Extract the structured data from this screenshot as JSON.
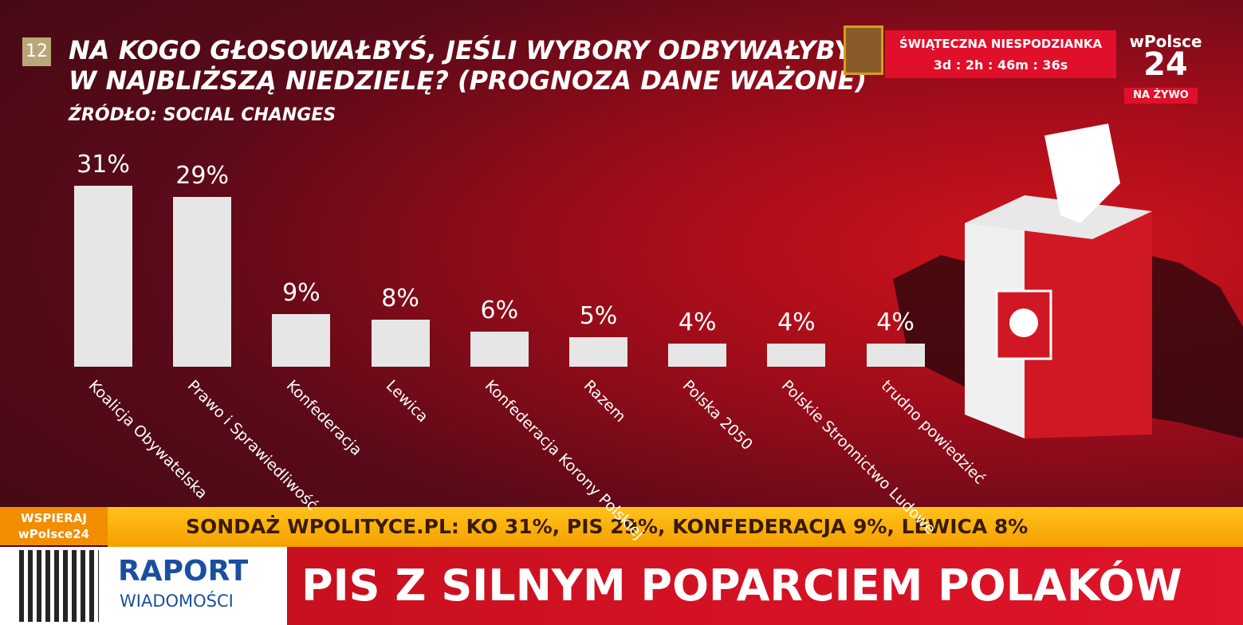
{
  "chart_data": {
    "type": "bar",
    "title": "NA KOGO GŁOSOWAŁBYŚ, JEŚLI WYBORY ODBYWAŁYBY\nW NAJBLIŻSZĄ NIEDZIELĘ? (PROGNOZA DANE WAŻONE)",
    "subtitle": "ŹRÓDŁO: SOCIAL CHANGES",
    "categories": [
      "Koalicja\nObywatelska",
      "Prawo\ni Sprawiedliwość",
      "Konfederacja",
      "Lewica",
      "Konfederacja\nKorony Polskiej",
      "Razem",
      "Polska 2050",
      "Polskie Stronnictwo\nLudowe",
      "trudno\npowiedzieć"
    ],
    "values": [
      31,
      29,
      9,
      8,
      6,
      5,
      4,
      4,
      4
    ],
    "value_labels": [
      "31%",
      "29%",
      "9%",
      "8%",
      "6%",
      "5%",
      "4%",
      "4%",
      "4%"
    ],
    "color": "#e6e6e6"
  },
  "broadcast": {
    "badge": "12",
    "promo_title": "ŚWIĄTECZNA NIESPODZIANKA",
    "promo_timer": "3d : 2h : 46m : 36s",
    "logo_top": "wPolsce",
    "logo_num": "24",
    "live": "NA ŻYWO",
    "support": "WSPIERAJ\nwPolsce24",
    "ticker": "SONDAŻ WPOLITYCE.PL: KO 31%, PIS 29%, KONFEDERACJA 9%, LEWICA 8%",
    "show_top": "RAPORT",
    "show_bottom": "WIADOMOŚCI",
    "headline": "PIS Z SILNYM POPARCIEM POLAKÓW"
  }
}
